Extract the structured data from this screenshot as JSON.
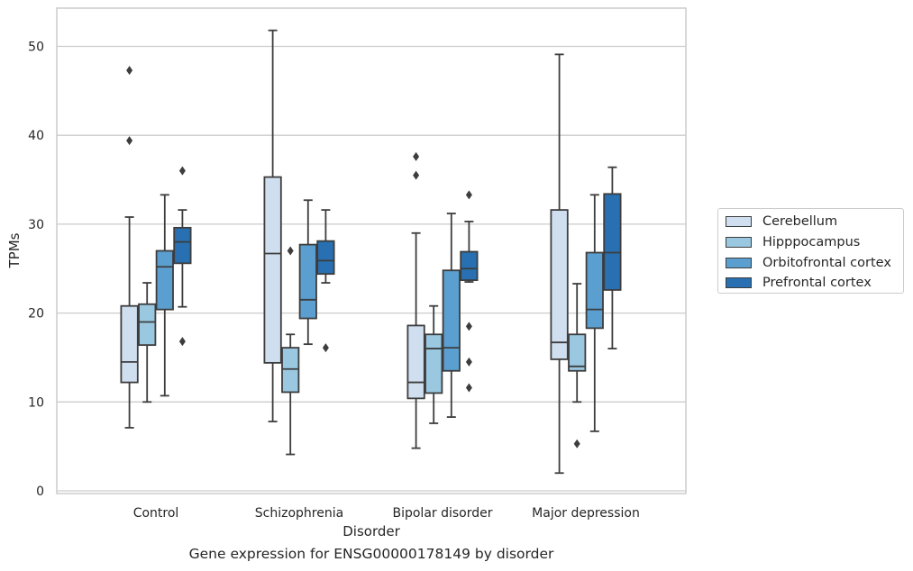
{
  "chart_data": {
    "type": "box",
    "xlabel": "Disorder",
    "ylabel": "TPMs",
    "categories": [
      "Control",
      "Schizophrenia",
      "Bipolar disorder",
      "Major depression"
    ],
    "ylim": [
      0,
      54
    ],
    "yticks": [
      0,
      10,
      20,
      30,
      40,
      50
    ],
    "grid": true,
    "legend_position": "right",
    "series": [
      {
        "name": "Cerebellum",
        "color": "#d0dfef",
        "boxes": [
          {
            "whisker_low": 7.1,
            "q1": 12.2,
            "median": 14.5,
            "q3": 20.8,
            "whisker_high": 30.8,
            "outliers": [
              39.4,
              47.3
            ]
          },
          {
            "whisker_low": 7.8,
            "q1": 14.4,
            "median": 26.7,
            "q3": 35.3,
            "whisker_high": 51.8,
            "outliers": []
          },
          {
            "whisker_low": 4.8,
            "q1": 10.4,
            "median": 12.2,
            "q3": 18.6,
            "whisker_high": 29.0,
            "outliers": [
              35.5,
              37.6
            ]
          },
          {
            "whisker_low": 2.0,
            "q1": 14.8,
            "median": 16.7,
            "q3": 31.6,
            "whisker_high": 49.1,
            "outliers": []
          }
        ]
      },
      {
        "name": "Hipppocampus",
        "color": "#9ac8e0",
        "boxes": [
          {
            "whisker_low": 10.0,
            "q1": 16.4,
            "median": 19.0,
            "q3": 21.0,
            "whisker_high": 23.4,
            "outliers": []
          },
          {
            "whisker_low": 4.1,
            "q1": 11.1,
            "median": 13.7,
            "q3": 16.1,
            "whisker_high": 17.6,
            "outliers": [
              27.0
            ]
          },
          {
            "whisker_low": 7.6,
            "q1": 11.0,
            "median": 16.0,
            "q3": 17.6,
            "whisker_high": 20.8,
            "outliers": []
          },
          {
            "whisker_low": 10.0,
            "q1": 13.5,
            "median": 14.0,
            "q3": 17.6,
            "whisker_high": 23.3,
            "outliers": [
              5.3
            ]
          }
        ]
      },
      {
        "name": "Orbitofrontal cortex",
        "color": "#5a9fcf",
        "boxes": [
          {
            "whisker_low": 10.7,
            "q1": 20.4,
            "median": 25.2,
            "q3": 27.0,
            "whisker_high": 33.3,
            "outliers": []
          },
          {
            "whisker_low": 16.5,
            "q1": 19.4,
            "median": 21.5,
            "q3": 27.7,
            "whisker_high": 32.7,
            "outliers": []
          },
          {
            "whisker_low": 8.3,
            "q1": 13.5,
            "median": 16.1,
            "q3": 24.8,
            "whisker_high": 31.2,
            "outliers": []
          },
          {
            "whisker_low": 6.7,
            "q1": 18.3,
            "median": 20.4,
            "q3": 26.8,
            "whisker_high": 33.3,
            "outliers": []
          }
        ]
      },
      {
        "name": "Prefrontal cortex",
        "color": "#2870b1",
        "boxes": [
          {
            "whisker_low": 20.7,
            "q1": 25.6,
            "median": 28.0,
            "q3": 29.6,
            "whisker_high": 31.6,
            "outliers": [
              16.8,
              36.0
            ]
          },
          {
            "whisker_low": 23.4,
            "q1": 24.4,
            "median": 25.9,
            "q3": 28.1,
            "whisker_high": 31.6,
            "outliers": [
              16.1
            ]
          },
          {
            "whisker_low": 23.5,
            "q1": 23.7,
            "median": 25.0,
            "q3": 26.9,
            "whisker_high": 30.3,
            "outliers": [
              11.6,
              14.5,
              18.5,
              33.3
            ]
          },
          {
            "whisker_low": 16.0,
            "q1": 22.6,
            "median": 26.8,
            "q3": 33.4,
            "whisker_high": 36.4,
            "outliers": []
          }
        ]
      }
    ]
  },
  "caption": "Gene expression for ENSG00000178149 by disorder"
}
